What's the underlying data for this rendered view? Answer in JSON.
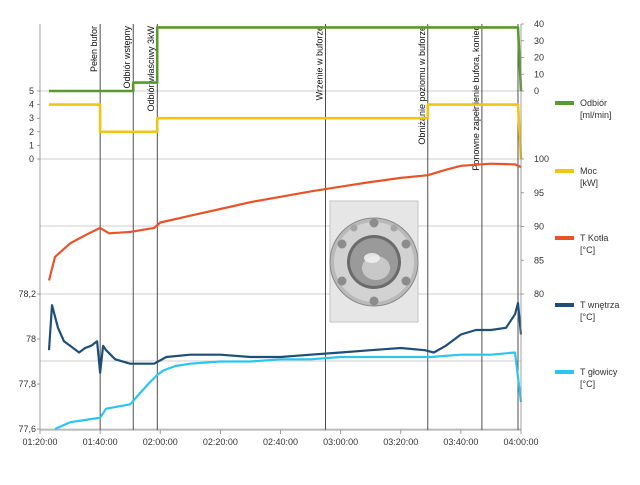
{
  "chart_data": {
    "type": "line",
    "x_axis": {
      "range": [
        "01:20:00",
        "04:00:00"
      ],
      "ticks": [
        "01:20:00",
        "01:40:00",
        "02:00:00",
        "02:20:00",
        "02:40:00",
        "03:00:00",
        "03:20:00",
        "03:40:00",
        "04:00:00"
      ]
    },
    "axes": {
      "left_top": {
        "range": [
          0,
          5
        ],
        "ticks": [
          "0",
          "1",
          "2",
          "3",
          "4",
          "5"
        ]
      },
      "right_top": {
        "range": [
          0,
          40
        ],
        "ticks": [
          "0",
          "10",
          "20",
          "30",
          "40"
        ]
      },
      "right_middle": {
        "range": [
          80,
          100
        ],
        "ticks": [
          "80",
          "85",
          "90",
          "95",
          "100"
        ]
      },
      "left_bottom": {
        "range": [
          77.6,
          78.2
        ],
        "ticks": [
          "77,6",
          "77,8",
          "78",
          "78,2"
        ]
      }
    },
    "events": [
      {
        "label": "Pełen bufor",
        "time": "01:40:00"
      },
      {
        "label": "Odbiór wstępny",
        "time": "01:51:00"
      },
      {
        "label": "Odbiór właściwy 3kW",
        "time": "01:59:00"
      },
      {
        "label": "Wrzenie w buforze",
        "time": "02:55:00"
      },
      {
        "label": "Obniżanie poziomu w buforze",
        "time": "03:29:00"
      },
      {
        "label": "Ponowne zapełnienie bufora, koniec",
        "time": "03:47:00"
      },
      {
        "label": "",
        "time": "03:59:00"
      }
    ],
    "series": [
      {
        "name": "Odbiór [ml/min]",
        "color": "#5a9a2a",
        "axis": "right_top",
        "x": [
          "01:23:00",
          "01:51:00",
          "01:51:00",
          "01:59:00",
          "01:59:00",
          "03:59:00",
          "04:00:00"
        ],
        "y": [
          0,
          0,
          5,
          5,
          38,
          38,
          0
        ]
      },
      {
        "name": "Moc [kW]",
        "color": "#f0c419",
        "axis": "left_top",
        "x": [
          "01:23:00",
          "01:40:00",
          "01:40:00",
          "01:59:00",
          "01:59:00",
          "03:29:00",
          "03:29:00",
          "03:59:00",
          "04:00:00"
        ],
        "y": [
          4,
          4,
          2,
          2,
          3,
          3,
          4,
          4,
          0
        ]
      },
      {
        "name": "T Kotła [°C]",
        "color": "#e8532a",
        "axis": "right_middle",
        "x": [
          "01:23:00",
          "01:25:00",
          "01:30:00",
          "01:35:00",
          "01:40:00",
          "01:43:00",
          "01:50:00",
          "01:58:00",
          "02:00:00",
          "02:10:00",
          "02:20:00",
          "02:30:00",
          "02:40:00",
          "02:50:00",
          "03:00:00",
          "03:10:00",
          "03:20:00",
          "03:29:00",
          "03:35:00",
          "03:40:00",
          "03:50:00",
          "03:58:00",
          "04:00:00"
        ],
        "y": [
          82,
          85.5,
          87.5,
          88.7,
          89.8,
          89,
          89.2,
          89.8,
          90.6,
          91.6,
          92.6,
          93.6,
          94.4,
          95.2,
          95.9,
          96.6,
          97.2,
          97.6,
          98.4,
          99.0,
          99.3,
          99.2,
          98.8
        ]
      },
      {
        "name": "T wnętrza [°C]",
        "color": "#1f4e79",
        "axis": "left_bottom",
        "x": [
          "01:23:00",
          "01:24:00",
          "01:26:00",
          "01:28:00",
          "01:30:00",
          "01:32:00",
          "01:33:00",
          "01:35:00",
          "01:37:00",
          "01:39:00",
          "01:40:00",
          "01:41:00",
          "01:42:00",
          "01:45:00",
          "01:50:00",
          "01:55:00",
          "01:58:00",
          "02:02:00",
          "02:10:00",
          "02:20:00",
          "02:30:00",
          "02:40:00",
          "02:50:00",
          "03:00:00",
          "03:10:00",
          "03:20:00",
          "03:28:00",
          "03:31:00",
          "03:35:00",
          "03:40:00",
          "03:45:00",
          "03:50:00",
          "03:55:00",
          "03:58:00",
          "03:59:00",
          "04:00:00"
        ],
        "y": [
          77.95,
          78.15,
          78.05,
          77.99,
          77.97,
          77.95,
          77.94,
          77.96,
          77.97,
          77.99,
          77.85,
          77.97,
          77.95,
          77.91,
          77.89,
          77.89,
          77.89,
          77.92,
          77.93,
          77.93,
          77.92,
          77.92,
          77.93,
          77.94,
          77.95,
          77.96,
          77.95,
          77.94,
          77.97,
          78.02,
          78.04,
          78.04,
          78.05,
          78.11,
          78.16,
          78.02
        ]
      },
      {
        "name": "T głowicy [°C]",
        "color": "#2ec4f0",
        "axis": "left_bottom",
        "x": [
          "01:25:00",
          "01:30:00",
          "01:35:00",
          "01:40:00",
          "01:42:00",
          "01:50:00",
          "01:52:00",
          "01:56:00",
          "01:59:00",
          "02:01:00",
          "02:05:00",
          "02:10:00",
          "02:20:00",
          "02:30:00",
          "02:40:00",
          "02:50:00",
          "03:00:00",
          "03:10:00",
          "03:20:00",
          "03:30:00",
          "03:40:00",
          "03:50:00",
          "03:58:00",
          "04:00:00"
        ],
        "y": [
          77.6,
          77.63,
          77.64,
          77.65,
          77.69,
          77.71,
          77.74,
          77.8,
          77.84,
          77.86,
          77.88,
          77.89,
          77.9,
          77.9,
          77.91,
          77.91,
          77.92,
          77.92,
          77.92,
          77.92,
          77.93,
          77.93,
          77.94,
          77.72
        ]
      }
    ],
    "legend": {
      "placement": "right",
      "entries": [
        {
          "name": "Odbiór",
          "unit": "[ml/min]",
          "color": "#5a9a2a"
        },
        {
          "name": "Moc",
          "unit": "[kW]",
          "color": "#f0c419"
        },
        {
          "name": "T Kotła",
          "unit": "[°C]",
          "color": "#e8532a"
        },
        {
          "name": "T wnętrza",
          "unit": "[°C]",
          "color": "#1f4e79"
        },
        {
          "name": "T głowicy",
          "unit": "[°C]",
          "color": "#2ec4f0"
        }
      ]
    },
    "grid": true
  },
  "image": {
    "description_icon": "round-glass-sight-window-photo"
  }
}
